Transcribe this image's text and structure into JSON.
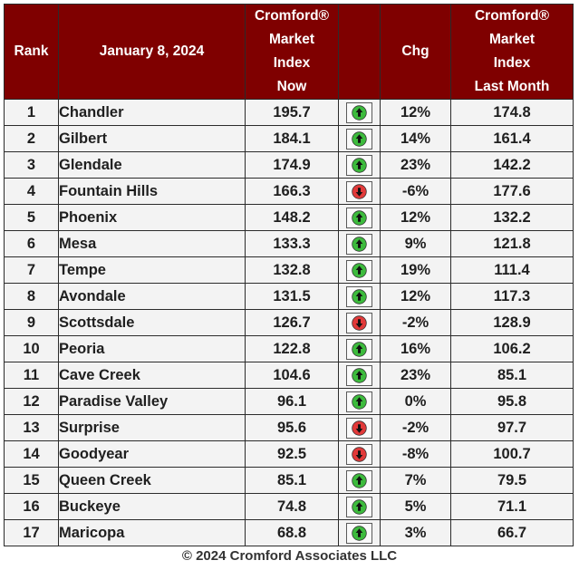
{
  "header": {
    "rank": "Rank",
    "date": "January 8, 2024",
    "now_lines": [
      "Cromford®",
      "Market",
      "Index",
      "Now"
    ],
    "chg": "Chg",
    "last_lines": [
      "Cromford®",
      "Market",
      "Index",
      "Last Month"
    ]
  },
  "colors": {
    "header_bg": "#7f0000",
    "up": "#3dbb3d",
    "down": "#e23a3a",
    "row_bg": "#f3f3f3"
  },
  "rows": [
    {
      "rank": "1",
      "city": "Chandler",
      "now": "195.7",
      "dir": "up",
      "chg": "12%",
      "last": "174.8"
    },
    {
      "rank": "2",
      "city": "Gilbert",
      "now": "184.1",
      "dir": "up",
      "chg": "14%",
      "last": "161.4"
    },
    {
      "rank": "3",
      "city": "Glendale",
      "now": "174.9",
      "dir": "up",
      "chg": "23%",
      "last": "142.2"
    },
    {
      "rank": "4",
      "city": "Fountain Hills",
      "now": "166.3",
      "dir": "down",
      "chg": "-6%",
      "last": "177.6"
    },
    {
      "rank": "5",
      "city": "Phoenix",
      "now": "148.2",
      "dir": "up",
      "chg": "12%",
      "last": "132.2"
    },
    {
      "rank": "6",
      "city": "Mesa",
      "now": "133.3",
      "dir": "up",
      "chg": "9%",
      "last": "121.8"
    },
    {
      "rank": "7",
      "city": "Tempe",
      "now": "132.8",
      "dir": "up",
      "chg": "19%",
      "last": "111.4"
    },
    {
      "rank": "8",
      "city": "Avondale",
      "now": "131.5",
      "dir": "up",
      "chg": "12%",
      "last": "117.3"
    },
    {
      "rank": "9",
      "city": "Scottsdale",
      "now": "126.7",
      "dir": "down",
      "chg": "-2%",
      "last": "128.9"
    },
    {
      "rank": "10",
      "city": "Peoria",
      "now": "122.8",
      "dir": "up",
      "chg": "16%",
      "last": "106.2"
    },
    {
      "rank": "11",
      "city": "Cave Creek",
      "now": "104.6",
      "dir": "up",
      "chg": "23%",
      "last": "85.1"
    },
    {
      "rank": "12",
      "city": "Paradise Valley",
      "now": "96.1",
      "dir": "up",
      "chg": "0%",
      "last": "95.8"
    },
    {
      "rank": "13",
      "city": "Surprise",
      "now": "95.6",
      "dir": "down",
      "chg": "-2%",
      "last": "97.7"
    },
    {
      "rank": "14",
      "city": "Goodyear",
      "now": "92.5",
      "dir": "down",
      "chg": "-8%",
      "last": "100.7"
    },
    {
      "rank": "15",
      "city": "Queen Creek",
      "now": "85.1",
      "dir": "up",
      "chg": "7%",
      "last": "79.5"
    },
    {
      "rank": "16",
      "city": "Buckeye",
      "now": "74.8",
      "dir": "up",
      "chg": "5%",
      "last": "71.1"
    },
    {
      "rank": "17",
      "city": "Maricopa",
      "now": "68.8",
      "dir": "up",
      "chg": "3%",
      "last": "66.7"
    }
  ],
  "footer": "© 2024 Cromford Associates LLC"
}
